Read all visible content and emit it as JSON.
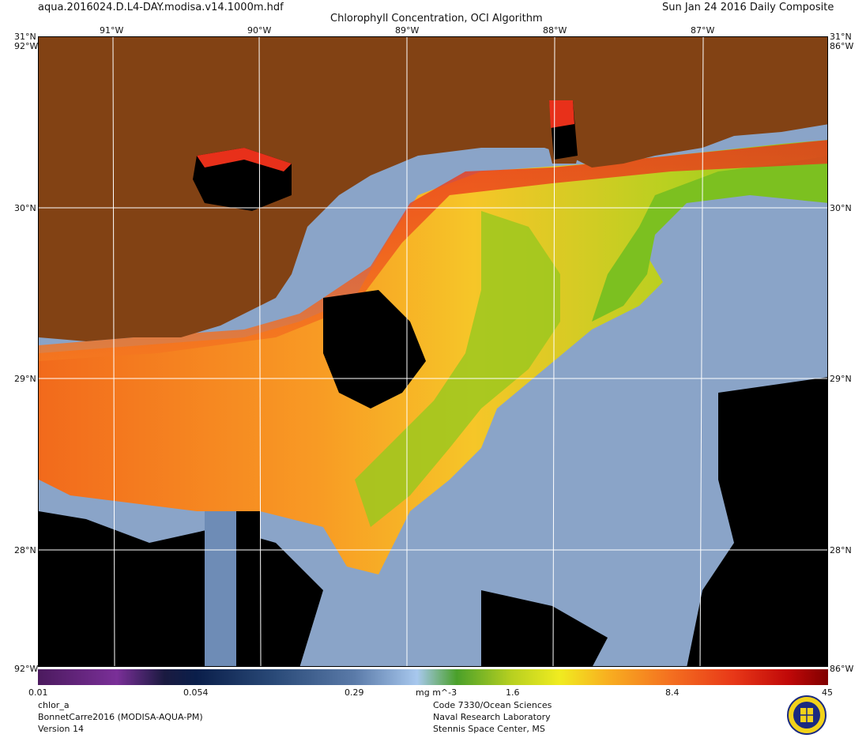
{
  "header": {
    "filename": "aqua.2016024.D.L4-DAY.modisa.v14.1000m.hdf",
    "title": "Chlorophyll Concentration, OCI Algorithm",
    "date": "Sun Jan 24 2016 Daily Composite"
  },
  "map": {
    "lon_labels": [
      "91°W",
      "90°W",
      "89°W",
      "88°W",
      "87°W"
    ],
    "lat_labels": [
      "31°N",
      "30°N",
      "29°N",
      "28°N"
    ],
    "corner_label_left": "31°N",
    "corner_label_right": "31°N",
    "edge_label_left": "92°W",
    "edge_label_right": "86°W"
  },
  "colorbar": {
    "ticks": [
      "0.01",
      "0.054",
      "0.29",
      "mg m^-3",
      "1.6",
      "8.4",
      "45"
    ],
    "colors": [
      "#4b1a5e",
      "#7a2f98",
      "#1a1a40",
      "#0a1e4a",
      "#2a4a78",
      "#5a7aa8",
      "#8eaed8",
      "#a8c8ee",
      "#4aa02a",
      "#b8d020",
      "#f0ec20",
      "#f8b020",
      "#f47020",
      "#e83818",
      "#c00808",
      "#800000"
    ]
  },
  "footer": {
    "left_lines": [
      "chlor_a",
      "BonnetCarre2016 (MODISA-AQUA-PM)",
      "Version 14"
    ],
    "center_lines": [
      "Code 7330/Ocean Sciences",
      "Naval Research Laboratory",
      "Stennis Space Center, MS"
    ]
  },
  "palette": {
    "land": "#824214",
    "ocean_clear": "#8aa4c8",
    "no_data": "#000000",
    "grid": "#ffffff"
  }
}
